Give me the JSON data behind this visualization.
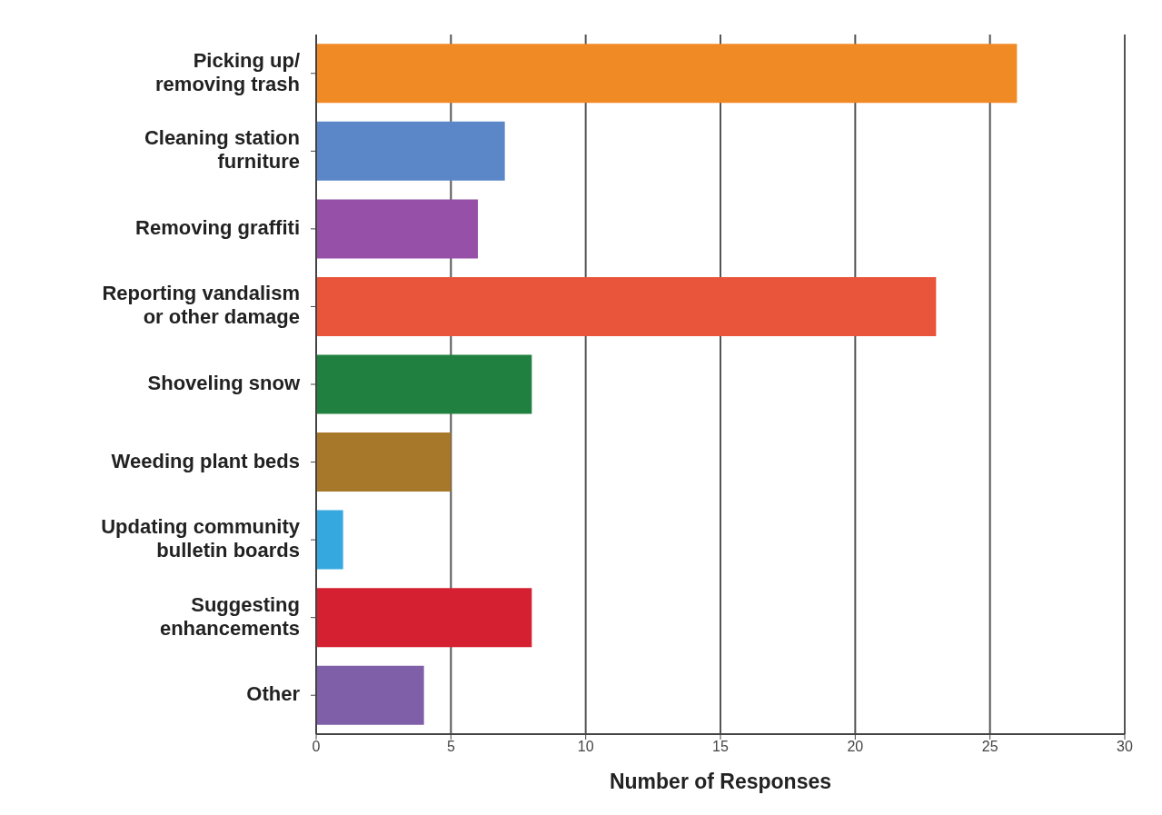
{
  "chart_data": {
    "type": "bar",
    "orientation": "horizontal",
    "xlabel": "Number of Responses",
    "categories": [
      "Picking up/\nremoving trash",
      "Cleaning station\nfurniture",
      "Removing graffiti",
      "Reporting vandalism\nor other damage",
      "Shoveling snow",
      "Weeding plant beds",
      "Updating community\nbulletin boards",
      "Suggesting\nenhancements",
      "Other"
    ],
    "values": [
      26,
      7,
      6,
      23,
      8,
      5,
      1,
      8,
      4
    ],
    "colors": [
      "#f08a24",
      "#5b87c9",
      "#9650a8",
      "#e8553a",
      "#1f8040",
      "#a8782a",
      "#35a8e0",
      "#d42030",
      "#7e5fa8"
    ],
    "xlim": [
      0,
      30
    ],
    "xticks": [
      0,
      5,
      10,
      15,
      20,
      25,
      30
    ],
    "grid": "x"
  }
}
